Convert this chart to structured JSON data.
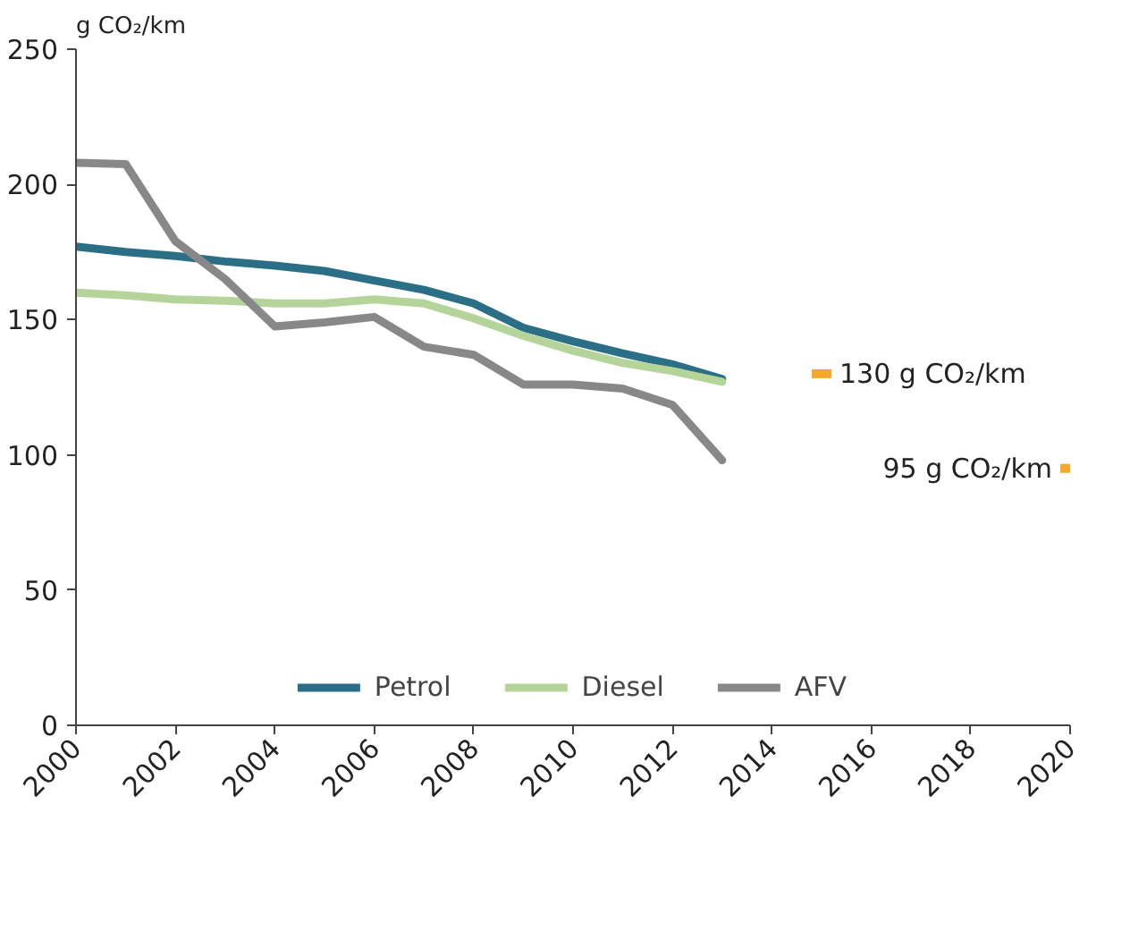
{
  "chart_data": {
    "type": "line",
    "ylabel": "g CO₂/km",
    "x": [
      2000,
      2001,
      2002,
      2003,
      2004,
      2005,
      2006,
      2007,
      2008,
      2009,
      2010,
      2011,
      2012,
      2013
    ],
    "series": [
      {
        "name": "Petrol",
        "color": "#2a6f85",
        "values": [
          177,
          175,
          173.5,
          171.5,
          170,
          168,
          164.5,
          161,
          156,
          147,
          142,
          137.5,
          133.5,
          128
        ]
      },
      {
        "name": "Diesel",
        "color": "#b5d49a",
        "values": [
          160,
          159,
          157.5,
          157,
          156,
          156,
          157.5,
          156,
          150.5,
          144,
          138.5,
          134,
          131,
          127
        ]
      },
      {
        "name": "AFV",
        "color": "#888889",
        "values": [
          208,
          207.5,
          179,
          165,
          147.5,
          149,
          151,
          140,
          137,
          126,
          126,
          124.5,
          118.5,
          98
        ]
      },
      {
        "type": "scatter",
        "marker": "square",
        "color": "#f5a82a",
        "x": [
          2015,
          2020
        ],
        "values": [
          130,
          95
        ]
      }
    ],
    "annotations": [
      {
        "text": "130 g CO₂/km",
        "x": 2015,
        "y": 130
      },
      {
        "text": "95 g CO₂/km",
        "x": 2020,
        "y": 95
      }
    ],
    "xlim": [
      2000,
      2020
    ],
    "xticks": [
      2000,
      2002,
      2004,
      2006,
      2008,
      2010,
      2012,
      2014,
      2016,
      2018,
      2020
    ],
    "ylim": [
      0,
      250
    ],
    "yticks": [
      0,
      50,
      100,
      150,
      200,
      250
    ],
    "grid": false,
    "legend": "bottom",
    "marker": "none",
    "line_style": "solid"
  }
}
